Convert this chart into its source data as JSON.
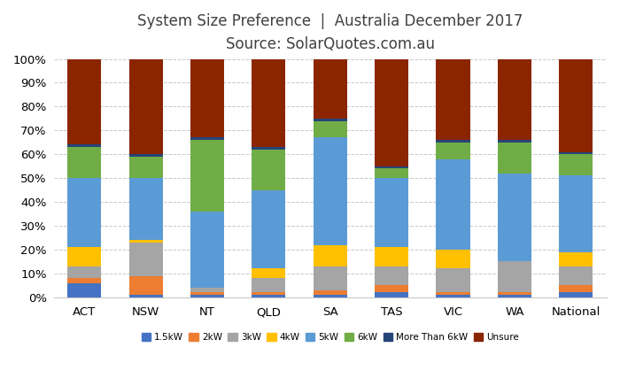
{
  "title_line1": "System Size Preference  |  Australia December 2017",
  "title_line2": "Source: SolarQuotes.com.au",
  "categories": [
    "ACT",
    "NSW",
    "NT",
    "QLD",
    "SA",
    "TAS",
    "VIC",
    "WA",
    "National"
  ],
  "series": {
    "1.5kW": [
      6,
      1,
      1,
      1,
      1,
      2,
      1,
      1,
      2
    ],
    "2kW": [
      2,
      8,
      1,
      1,
      2,
      3,
      1,
      1,
      3
    ],
    "3kW": [
      5,
      14,
      2,
      6,
      10,
      8,
      10,
      13,
      8
    ],
    "4kW": [
      8,
      1,
      0,
      4,
      9,
      8,
      8,
      0,
      6
    ],
    "5kW": [
      29,
      26,
      32,
      33,
      45,
      29,
      38,
      37,
      32
    ],
    "6kW": [
      13,
      9,
      30,
      17,
      7,
      4,
      7,
      13,
      9
    ],
    "More Than 6kW": [
      1,
      1,
      1,
      1,
      1,
      1,
      1,
      1,
      1
    ],
    "Unsure": [
      36,
      40,
      33,
      37,
      25,
      45,
      34,
      34,
      39
    ]
  },
  "colors": {
    "1.5kW": "#4472C4",
    "2kW": "#ED7D31",
    "3kW": "#A5A5A5",
    "4kW": "#FFC000",
    "5kW": "#5B9BD5",
    "6kW": "#70AD47",
    "More Than 6kW": "#264478",
    "Unsure": "#8B2500"
  },
  "ylim": [
    0,
    100
  ],
  "yticks": [
    0,
    10,
    20,
    30,
    40,
    50,
    60,
    70,
    80,
    90,
    100
  ],
  "ytick_labels": [
    "0%",
    "10%",
    "20%",
    "30%",
    "40%",
    "50%",
    "60%",
    "70%",
    "80%",
    "90%",
    "100%"
  ],
  "bar_width": 0.55,
  "background_color": "#FFFFFF",
  "title_fontsize": 12,
  "subtitle_fontsize": 11
}
